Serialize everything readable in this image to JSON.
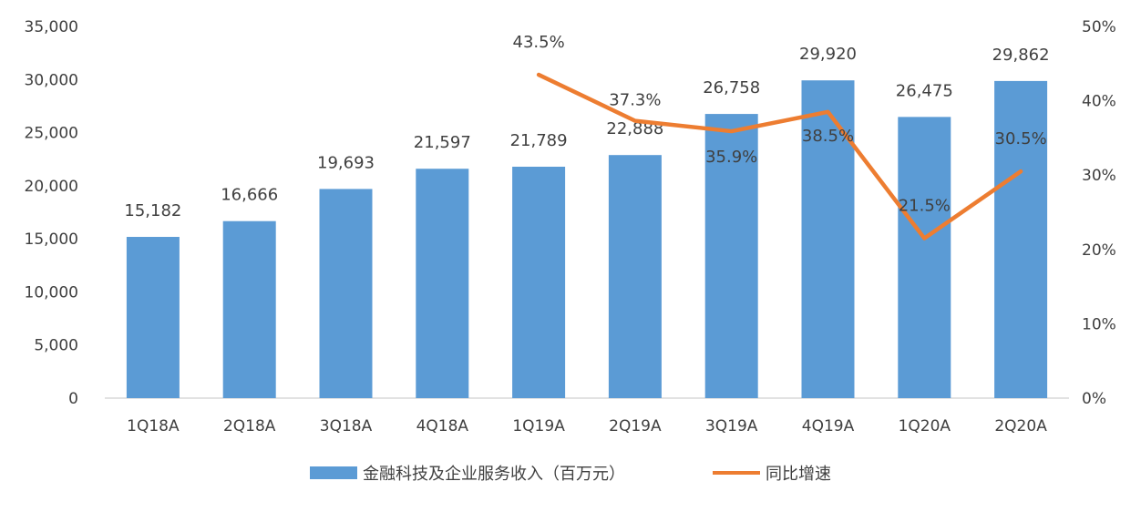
{
  "chart_data": {
    "type": "bar+line",
    "categories": [
      "1Q18A",
      "2Q18A",
      "3Q18A",
      "4Q18A",
      "1Q19A",
      "2Q19A",
      "3Q19A",
      "4Q19A",
      "1Q20A",
      "2Q20A"
    ],
    "series": [
      {
        "name": "金融科技及企业服务收入（百万元）",
        "type": "bar",
        "axis": "left",
        "color": "#5B9BD5",
        "values": [
          15182,
          16666,
          19693,
          21597,
          21789,
          22888,
          26758,
          29920,
          26475,
          29862
        ],
        "labels": [
          "15,182",
          "16,666",
          "19,693",
          "21,597",
          "21,789",
          "22,888",
          "26,758",
          "29,920",
          "26,475",
          "29,862"
        ]
      },
      {
        "name": "同比增速",
        "type": "line",
        "axis": "right",
        "color": "#ED7D31",
        "values": [
          null,
          null,
          null,
          null,
          43.5,
          37.3,
          35.9,
          38.5,
          21.5,
          30.5
        ],
        "labels": [
          "",
          "",
          "",
          "",
          "43.5%",
          "37.3%",
          "35.9%",
          "38.5%",
          "21.5%",
          "30.5%"
        ]
      }
    ],
    "y_left": {
      "range": [
        0,
        35000
      ],
      "ticks": [
        0,
        5000,
        10000,
        15000,
        20000,
        25000,
        30000,
        35000
      ],
      "tick_labels": [
        "0",
        "5,000",
        "10,000",
        "15,000",
        "20,000",
        "25,000",
        "30,000",
        "35,000"
      ]
    },
    "y_right": {
      "range": [
        0,
        50
      ],
      "ticks": [
        0,
        10,
        20,
        30,
        40,
        50
      ],
      "tick_labels": [
        "0%",
        "10%",
        "20%",
        "30%",
        "40%",
        "50%"
      ]
    },
    "grid": false,
    "legend_position": "bottom"
  }
}
